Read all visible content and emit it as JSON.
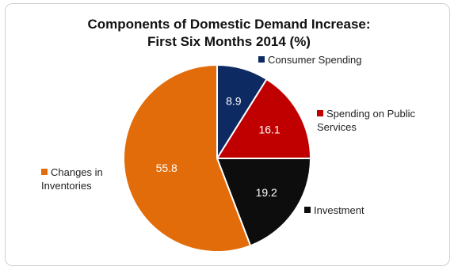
{
  "chart_data": {
    "type": "pie",
    "title_line1": "Components of Domestic Demand Increase:",
    "title_line2": "First Six Months 2014 (%)",
    "slices": [
      {
        "name": "Consumer Spending",
        "label_lines": [
          "Consumer Spending"
        ],
        "value": 8.9,
        "display": "8.9",
        "color": "#0d2a63"
      },
      {
        "name": "Spending on Public Services",
        "label_lines": [
          "Spending on Public",
          "Services"
        ],
        "value": 16.1,
        "display": "16.1",
        "color": "#c00000"
      },
      {
        "name": "Investment",
        "label_lines": [
          "Investment"
        ],
        "value": 19.2,
        "display": "19.2",
        "color": "#0d0d0d"
      },
      {
        "name": "Changes in Inventories",
        "label_lines": [
          "Changes in",
          "Inventories"
        ],
        "value": 55.8,
        "display": "55.8",
        "color": "#e36c0a"
      }
    ],
    "start_angle_deg": 0,
    "direction": "clockwise",
    "legend_placement": "beside each slice"
  }
}
